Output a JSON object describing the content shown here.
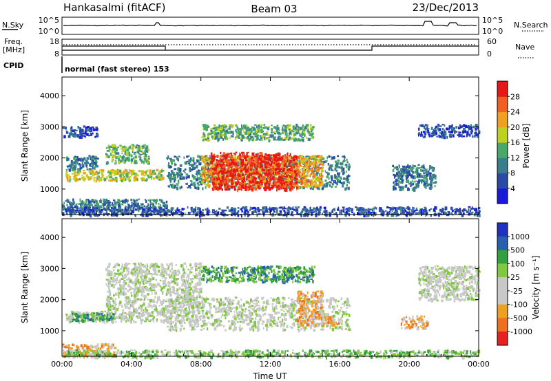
{
  "header": {
    "station": "Hankasalmi (fitACF)",
    "beam": "Beam 03",
    "date": "23/Dec/2013"
  },
  "strip_labels": {
    "nsky": "N.Sky",
    "nsky_ticks": [
      "10^5",
      "10^0"
    ],
    "nsearch": "N.Search",
    "nsearch_ticks": [
      "10^5",
      "10^0"
    ],
    "freq": "Freq.",
    "freq_unit": "[MHz]",
    "freq_ticks": [
      "18",
      "8"
    ],
    "nave": "Nave",
    "nave_ticks": [
      "60",
      "0"
    ],
    "cpid": "CPID",
    "cpid_text": "normal (fast stereo) 153"
  },
  "chart_data": [
    {
      "type": "heatmap",
      "name": "power",
      "xlabel": "",
      "ylabel": "Slant Range [km]",
      "xlim": [
        0,
        24
      ],
      "ylim": [
        180,
        4600
      ],
      "yticks": [
        1000,
        2000,
        3000,
        4000
      ],
      "colorbar_label": "Power [dB]",
      "colorbar_ticks": [
        "4",
        "8",
        "12",
        "16",
        "20",
        "24",
        "28"
      ],
      "colorbar_colors": [
        "#1a1adc",
        "#2a4aa8",
        "#3a7e8e",
        "#48a868",
        "#c0d020",
        "#f0a020",
        "#f06020",
        "#e81818"
      ],
      "regions": [
        {
          "x": [
            0.0,
            2.0
          ],
          "y": [
            2700,
            3050
          ],
          "level": 1
        },
        {
          "x": [
            2.5,
            5.0
          ],
          "y": [
            1850,
            2450
          ],
          "level": 3
        },
        {
          "x": [
            0.2,
            5.8
          ],
          "y": [
            1300,
            1650
          ],
          "level": 4
        },
        {
          "x": [
            0.2,
            2.0
          ],
          "y": [
            1650,
            2100
          ],
          "level": 2
        },
        {
          "x": [
            0.0,
            6.0
          ],
          "y": [
            300,
            700
          ],
          "level": 2
        },
        {
          "x": [
            6.0,
            16.5
          ],
          "y": [
            1050,
            2100
          ],
          "level": 2
        },
        {
          "x": [
            8.0,
            15.0
          ],
          "y": [
            1100,
            2100
          ],
          "level": 5
        },
        {
          "x": [
            8.5,
            13.5
          ],
          "y": [
            1000,
            2200
          ],
          "level": 7
        },
        {
          "x": [
            8.0,
            14.5
          ],
          "y": [
            2600,
            3100
          ],
          "level": 3
        },
        {
          "x": [
            19.0,
            21.5
          ],
          "y": [
            1000,
            1800
          ],
          "level": 2
        },
        {
          "x": [
            20.5,
            24.0
          ],
          "y": [
            2700,
            3100
          ],
          "level": 1
        },
        {
          "x": [
            0.0,
            24.0
          ],
          "y": [
            180,
            450
          ],
          "level": 1
        }
      ]
    },
    {
      "type": "heatmap",
      "name": "velocity",
      "xlabel": "Time UT",
      "ylabel": "Slant Range [km]",
      "xlim": [
        0,
        24
      ],
      "ylim": [
        180,
        4600
      ],
      "yticks": [
        1000,
        2000,
        3000,
        4000
      ],
      "xticks": [
        "00:00",
        "04:00",
        "08:00",
        "12:00",
        "16:00",
        "20:00",
        "00:00"
      ],
      "colorbar_label": "Velocity [m s⁻¹]",
      "colorbar_ticks": [
        "1000",
        "500",
        "100",
        "25",
        "-25",
        "-100",
        "-500",
        "-1000"
      ],
      "colorbar_colors": [
        "#2030c0",
        "#2860b0",
        "#30a040",
        "#80c840",
        "#c8c8c8",
        "#c8c8c8",
        "#f0a020",
        "#f07020",
        "#e82020"
      ],
      "regions": [
        {
          "x": [
            0.2,
            6.0
          ],
          "y": [
            1300,
            1650
          ],
          "level": 4
        },
        {
          "x": [
            0.5,
            3.0
          ],
          "y": [
            1350,
            1600
          ],
          "level": 2
        },
        {
          "x": [
            2.5,
            8.0
          ],
          "y": [
            1600,
            3200
          ],
          "level": 4
        },
        {
          "x": [
            6.0,
            16.5
          ],
          "y": [
            1050,
            2100
          ],
          "level": 4
        },
        {
          "x": [
            13.5,
            15.0
          ],
          "y": [
            1200,
            2300
          ],
          "level": 6
        },
        {
          "x": [
            15.0,
            16.0
          ],
          "y": [
            1200,
            1500
          ],
          "level": 6
        },
        {
          "x": [
            8.0,
            14.5
          ],
          "y": [
            2600,
            3100
          ],
          "level": 2
        },
        {
          "x": [
            19.5,
            21.0
          ],
          "y": [
            1100,
            1500
          ],
          "level": 6
        },
        {
          "x": [
            0.0,
            3.0
          ],
          "y": [
            200,
            600
          ],
          "level": 6
        },
        {
          "x": [
            20.5,
            24.0
          ],
          "y": [
            2000,
            3100
          ],
          "level": 4
        },
        {
          "x": [
            0.0,
            24.0
          ],
          "y": [
            180,
            400
          ],
          "level": 3
        }
      ]
    }
  ]
}
